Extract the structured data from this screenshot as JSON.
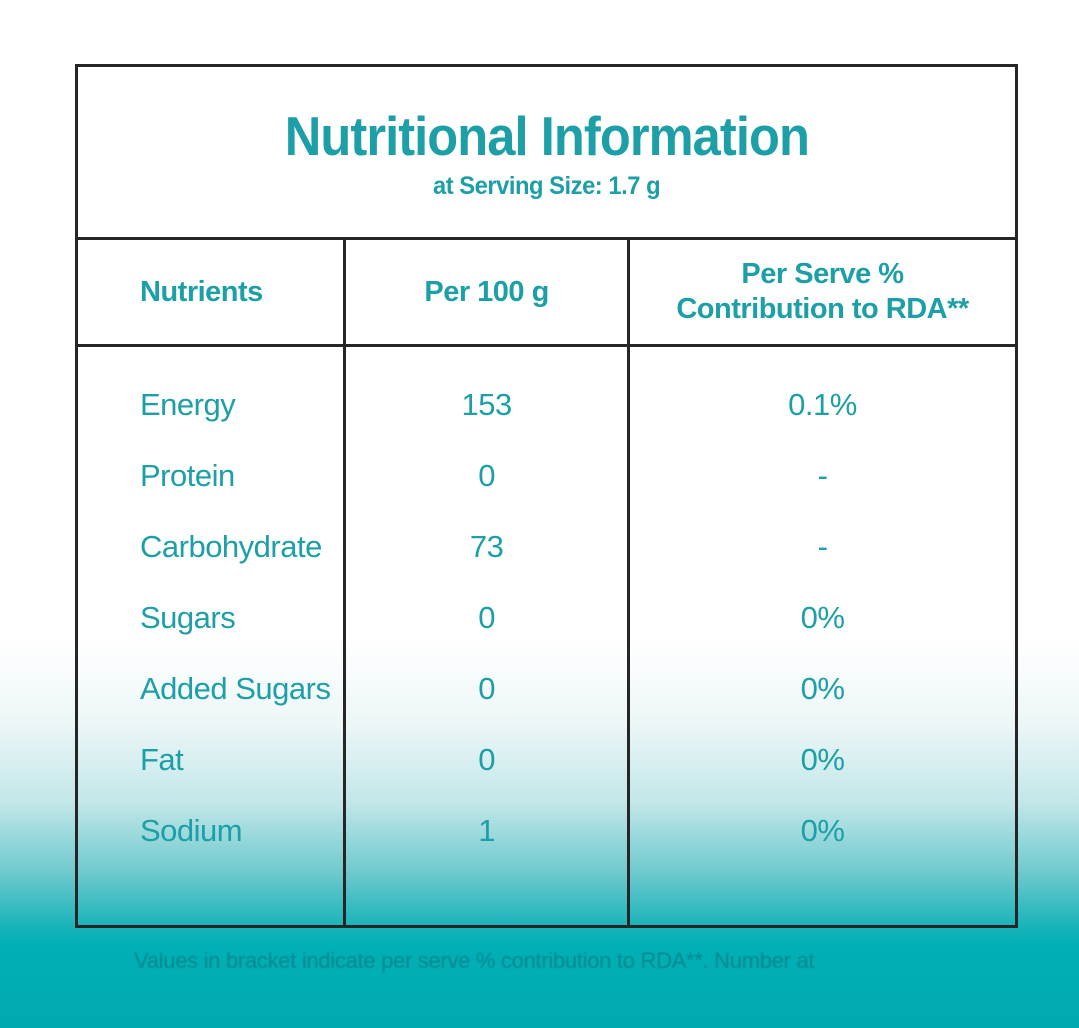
{
  "title": "Nutritional Information",
  "subtitle": "at Serving Size: 1.7 g",
  "table": {
    "headers": {
      "col1": "Nutrients",
      "col2": "Per 100 g",
      "col3_line1": "Per Serve %",
      "col3_line2": "Contribution to RDA**"
    },
    "rows": [
      {
        "nutrient": "Energy",
        "per_100g": "153",
        "per_serve": "0.1%"
      },
      {
        "nutrient": "Protein",
        "per_100g": "0",
        "per_serve": "-"
      },
      {
        "nutrient": "Carbohydrate",
        "per_100g": "73",
        "per_serve": "-"
      },
      {
        "nutrient": "Sugars",
        "per_100g": "0",
        "per_serve": "0%"
      },
      {
        "nutrient": "Added Sugars",
        "per_100g": "0",
        "per_serve": "0%"
      },
      {
        "nutrient": "Fat",
        "per_100g": "0",
        "per_serve": "0%"
      },
      {
        "nutrient": "Sodium",
        "per_100g": "1",
        "per_serve": "0%"
      }
    ]
  },
  "footnote": "Values in bracket indicate per serve % contribution to RDA**. Number at",
  "colors": {
    "accent_teal_text": "#1d9fa7",
    "background_teal": "#00b0b6",
    "border": "#262626",
    "page_top": "#ffffff"
  }
}
